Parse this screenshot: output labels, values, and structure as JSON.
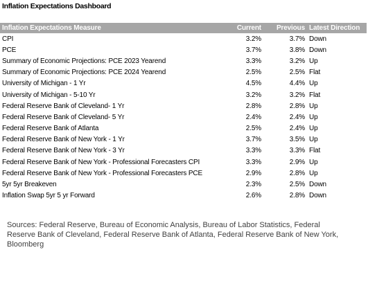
{
  "title": "Inflation Expectations Dashboard",
  "table": {
    "header": [
      "Inflation Expectations Measure",
      "Current",
      "Previous",
      "Latest Direction"
    ],
    "rows": [
      [
        "CPI",
        "3.2%",
        "3.7%",
        "Down"
      ],
      [
        "PCE",
        "3.7%",
        "3.8%",
        "Down"
      ],
      [
        "Summary of Economic Projections: PCE 2023 Yearend",
        "3.3%",
        "3.2%",
        "Up"
      ],
      [
        "Summary of Economic Projections: PCE 2024 Yearend",
        "2.5%",
        "2.5%",
        "Flat"
      ],
      [
        "University of Michigan - 1 Yr",
        "4.5%",
        "4.4%",
        "Up"
      ],
      [
        "University of Michigan - 5-10 Yr",
        "3.2%",
        "3.2%",
        "Flat"
      ],
      [
        "Federal Reserve Bank of Cleveland- 1 Yr",
        "2.8%",
        "2.8%",
        "Up"
      ],
      [
        "Federal Reserve Bank of Cleveland- 5 Yr",
        "2.4%",
        "2.4%",
        "Up"
      ],
      [
        "Federal Reserve Bank of Atlanta",
        "2.5%",
        "2.4%",
        "Up"
      ],
      [
        "Federal Reserve Bank of New York - 1 Yr",
        "3.7%",
        "3.5%",
        "Up"
      ],
      [
        "Federal Reserve Bank of New York - 3 Yr",
        "3.3%",
        "3.3%",
        "Flat"
      ],
      [
        "Federal Reserve Bank of New York - Professional Forecasters CPI",
        "3.3%",
        "2.9%",
        "Up"
      ],
      [
        "Federal Reserve Bank of New York - Professional Forecasters PCE",
        "2.9%",
        "2.8%",
        "Up"
      ],
      [
        "5yr 5yr Breakeven",
        "2.3%",
        "2.5%",
        "Down"
      ],
      [
        "Inflation Swap 5yr 5 yr Forward",
        "2.6%",
        "2.8%",
        "Down"
      ]
    ]
  },
  "sources": "Sources: Federal Reserve, Bureau of Economic Analysis, Bureau of Labor Statistics, Federal Reserve Bank of Cleveland, Federal Reserve Bank of Atlanta, Federal Reserve Bank of New York, Bloomberg"
}
